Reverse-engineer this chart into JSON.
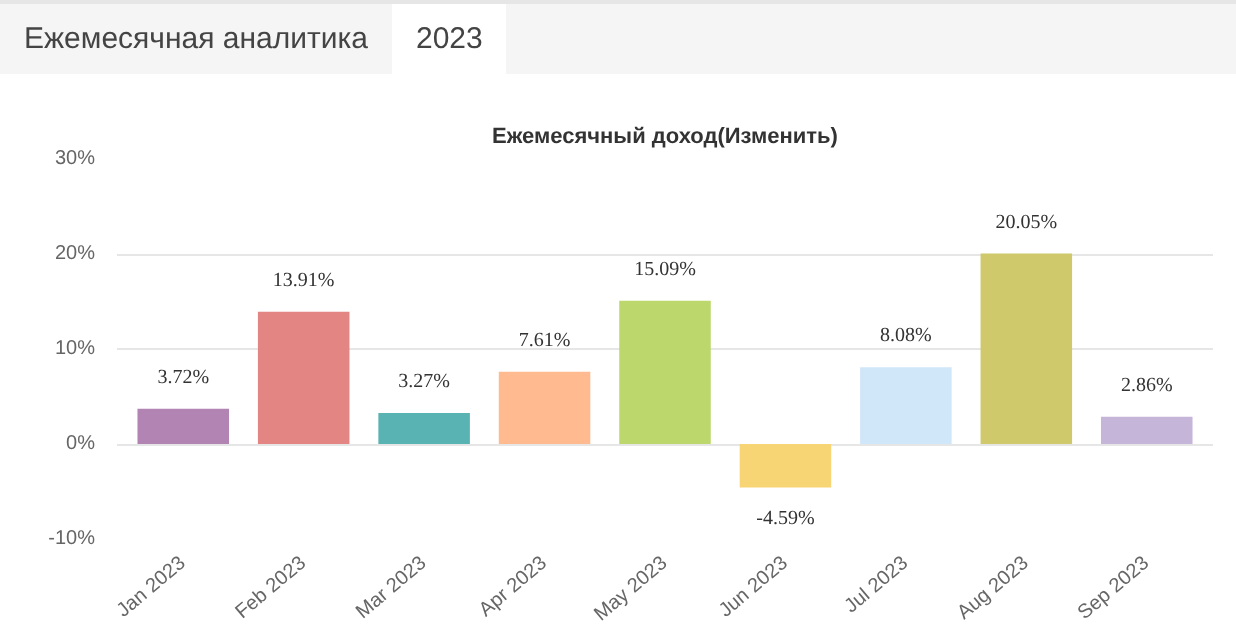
{
  "chart_data": {
    "type": "bar",
    "title": "Ежемесячный доход(Изменить)",
    "annotations": [
      "Ежемесячная аналитика",
      "2023"
    ],
    "categories": [
      "Jan 2023",
      "Feb 2023",
      "Mar 2023",
      "Apr 2023",
      "May 2023",
      "Jun 2023",
      "Jul 2023",
      "Aug 2023",
      "Sep 2023"
    ],
    "values": [
      3.72,
      13.91,
      3.27,
      7.61,
      15.09,
      -4.59,
      8.08,
      20.05,
      2.86
    ],
    "value_labels": [
      "3.72%",
      "13.91%",
      "3.27%",
      "7.61%",
      "15.09%",
      "-4.59%",
      "8.08%",
      "20.05%",
      "2.86%"
    ],
    "colors": [
      "#b284b4",
      "#e28583",
      "#5ab3b3",
      "#ffbb8f",
      "#bcd86c",
      "#f7d474",
      "#d0e6f9",
      "#d0c96b",
      "#c5b5d9"
    ],
    "ylim": [
      -10,
      30
    ],
    "yticks": [
      {
        "value": -10,
        "label": "-10%"
      },
      {
        "value": 0,
        "label": "0%"
      },
      {
        "value": 10,
        "label": "10%"
      },
      {
        "value": 20,
        "label": "20%"
      },
      {
        "value": 30,
        "label": "30%"
      }
    ],
    "grid": "y"
  }
}
